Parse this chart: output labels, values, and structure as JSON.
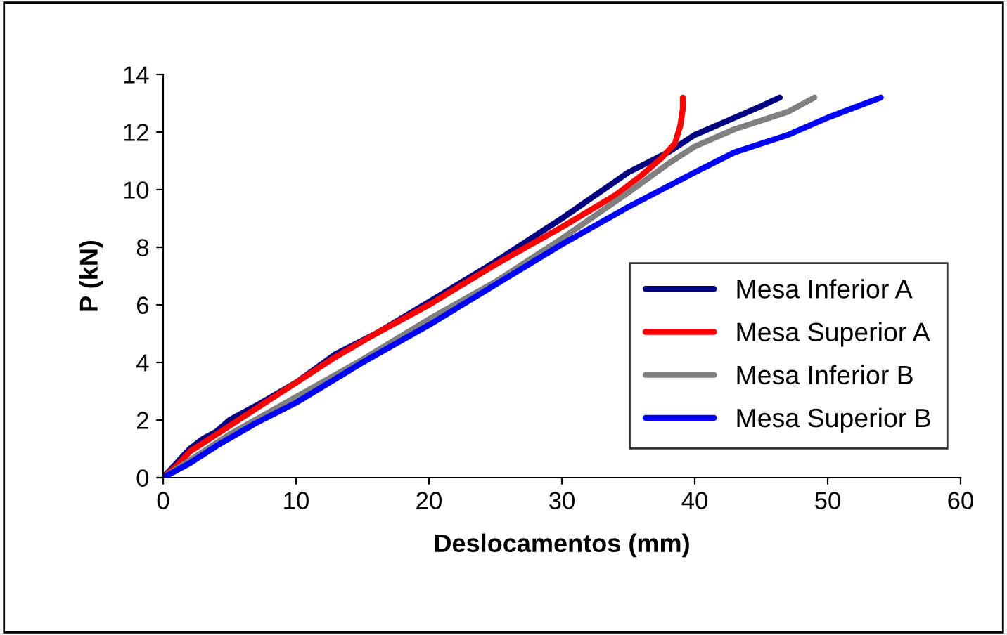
{
  "chart_data": {
    "type": "line",
    "xlabel": "Deslocamentos (mm)",
    "ylabel": "P (kN)",
    "xlim": [
      0,
      60
    ],
    "xticks": [
      0,
      10,
      20,
      30,
      40,
      50,
      60
    ],
    "ylim": [
      0,
      14
    ],
    "yticks": [
      0,
      2,
      4,
      6,
      8,
      10,
      12,
      14
    ],
    "grid": false,
    "legend": "bottom right",
    "marker": "none",
    "line_style": "solid",
    "series": [
      {
        "name": "Mesa Inferior A",
        "color": "#000080",
        "x": [
          0,
          1,
          2,
          3,
          4,
          5,
          7,
          10,
          13,
          16,
          20,
          25,
          30,
          35,
          38,
          40,
          43,
          45,
          46.4
        ],
        "values": [
          0,
          0.5,
          1.0,
          1.35,
          1.6,
          2.0,
          2.5,
          3.3,
          4.3,
          5.0,
          6.1,
          7.5,
          9.0,
          10.6,
          11.3,
          11.9,
          12.5,
          12.9,
          13.2
        ]
      },
      {
        "name": "Mesa Superior A",
        "color": "#ff0000",
        "x": [
          0,
          1,
          2,
          3,
          5,
          7,
          10,
          13,
          16,
          20,
          25,
          30,
          34,
          36,
          37.5,
          38.5,
          38.9,
          39.1,
          39.1
        ],
        "values": [
          0,
          0.4,
          0.9,
          1.2,
          1.8,
          2.4,
          3.3,
          4.2,
          5.0,
          6.0,
          7.4,
          8.7,
          9.8,
          10.5,
          11.1,
          11.6,
          12.2,
          12.8,
          13.2
        ]
      },
      {
        "name": "Mesa Inferior B",
        "color": "#808080",
        "x": [
          0,
          2,
          5,
          10,
          15,
          20,
          25,
          30,
          35,
          38,
          40,
          43,
          47,
          49
        ],
        "values": [
          0,
          0.6,
          1.5,
          2.8,
          4.1,
          5.5,
          6.8,
          8.3,
          9.9,
          10.9,
          11.5,
          12.1,
          12.7,
          13.2
        ]
      },
      {
        "name": "Mesa Superior B",
        "color": "#0000ff",
        "x": [
          0,
          2,
          4,
          7,
          10,
          15,
          20,
          25,
          30,
          35,
          40,
          43,
          47,
          50,
          54
        ],
        "values": [
          0,
          0.5,
          1.1,
          1.9,
          2.6,
          4.0,
          5.3,
          6.7,
          8.1,
          9.4,
          10.6,
          11.3,
          11.9,
          12.5,
          13.2
        ]
      }
    ]
  }
}
